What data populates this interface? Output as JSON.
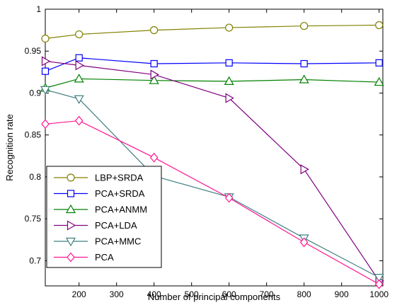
{
  "chart_data": {
    "type": "line",
    "title": "",
    "xlabel": "Number of principal components",
    "ylabel": "Recognition rate",
    "xlim": [
      110,
      1010
    ],
    "ylim": [
      0.67,
      1.0
    ],
    "xticks": [
      200,
      300,
      400,
      500,
      600,
      700,
      800,
      900,
      1000
    ],
    "yticks": [
      0.7,
      0.75,
      0.8,
      0.85,
      0.9,
      0.95,
      1
    ],
    "ytick_labels": [
      "0.7",
      "0.75",
      "0.8",
      "0.85",
      "0.9",
      "0.95",
      "1"
    ],
    "grid": false,
    "legend_position": "bottom-left",
    "x": [
      110,
      200,
      400,
      600,
      800,
      1000
    ],
    "series": [
      {
        "name": "LBP+SRDA",
        "color": "#808000",
        "marker": "circle",
        "values": [
          0.965,
          0.97,
          0.975,
          0.978,
          0.98,
          0.981
        ]
      },
      {
        "name": "PCA+SRDA",
        "color": "#0000ff",
        "marker": "square",
        "values": [
          0.926,
          0.942,
          0.935,
          0.936,
          0.935,
          0.936
        ]
      },
      {
        "name": "PCA+ANMM",
        "color": "#008000",
        "marker": "triangle-up",
        "values": [
          0.906,
          0.917,
          0.915,
          0.914,
          0.916,
          0.913
        ]
      },
      {
        "name": "PCA+LDA",
        "color": "#800080",
        "marker": "triangle-right",
        "values": [
          0.938,
          0.933,
          0.922,
          0.894,
          0.809,
          0.676
        ]
      },
      {
        "name": "PCA+MMC",
        "color": "#408080",
        "marker": "triangle-down",
        "values": [
          0.904,
          0.893,
          0.801,
          0.776,
          0.727,
          0.68
        ]
      },
      {
        "name": "PCA",
        "color": "#ff1493",
        "marker": "diamond",
        "values": [
          0.863,
          0.867,
          0.823,
          0.775,
          0.722,
          0.672
        ]
      }
    ]
  }
}
